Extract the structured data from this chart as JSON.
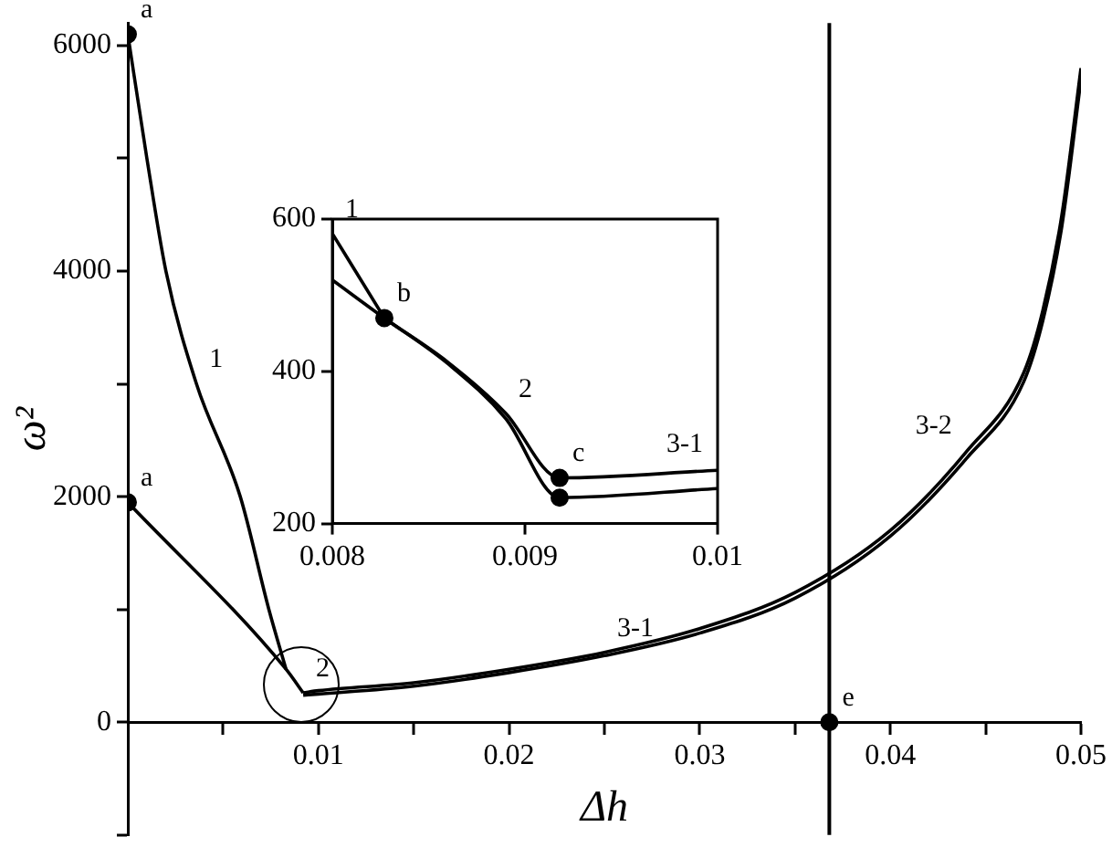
{
  "chart_data": [
    {
      "type": "line",
      "xlabel": "Δh",
      "ylabel": "ω²",
      "xlim": [
        0,
        0.05
      ],
      "ylim": [
        -1000,
        6200
      ],
      "xticks": [
        {
          "value": 0.005,
          "label": null
        },
        0.01,
        {
          "value": 0.015,
          "label": null
        },
        0.02,
        {
          "value": 0.025,
          "label": null
        },
        0.03,
        {
          "value": 0.035,
          "label": null
        },
        0.04,
        {
          "value": 0.045,
          "label": null
        },
        0.05
      ],
      "yticks": [
        {
          "value": -1000,
          "label": null
        },
        0,
        {
          "value": 1000,
          "label": null
        },
        2000,
        {
          "value": 3000,
          "label": null
        },
        4000,
        {
          "value": 5000,
          "label": null
        },
        6000
      ],
      "grid": false,
      "legend": false,
      "line_style": "solid",
      "series": [
        {
          "color": "#000000",
          "x": [
            0,
            0.001,
            0.002,
            0.0036,
            0.0059,
            0.0074,
            0.0083
          ],
          "values": [
            6100,
            5000,
            4000,
            3000,
            2000,
            1000,
            470
          ]
        },
        {
          "color": "#000000",
          "x": [
            0,
            0.0083,
            0.0092
          ],
          "values": [
            1950,
            470,
            260
          ]
        },
        {
          "color": "#000000",
          "x": [
            0.0092,
            0.01,
            0.015,
            0.02,
            0.025,
            0.03,
            0.035,
            0.04,
            0.044,
            0.047,
            0.048,
            0.049,
            0.05
          ],
          "values": [
            260,
            280,
            350,
            470,
            620,
            830,
            1150,
            1700,
            2400,
            3100,
            3650,
            4500,
            5800
          ]
        },
        {
          "color": "#000000",
          "x": [
            0.0092,
            0.01,
            0.015,
            0.02,
            0.025,
            0.03,
            0.035,
            0.04,
            0.044,
            0.047,
            0.048,
            0.049,
            0.05
          ],
          "values": [
            240,
            250,
            320,
            440,
            590,
            790,
            1100,
            1650,
            2340,
            3020,
            3560,
            4400,
            5700
          ]
        },
        {
          "type": "scatter",
          "marker": "circle",
          "color": "#000000",
          "x": [
            0,
            0,
            0.0368
          ],
          "values": [
            6100,
            1950,
            0
          ]
        }
      ],
      "ref_lines": [
        {
          "axis": "x",
          "value": 0.0368,
          "color": "#000000"
        }
      ],
      "annotations": [
        {
          "text": "a",
          "x": 0,
          "y": 6100
        },
        {
          "text": "a",
          "x": 0,
          "y": 1950
        },
        {
          "text": "1",
          "x": 0.0036,
          "y": 3000
        },
        {
          "text": "2",
          "x": 0.0092,
          "y": 260
        },
        {
          "text": "3-1",
          "x": 0.025,
          "y": 620
        },
        {
          "text": "3-2",
          "x": 0.044,
          "y": 2400
        },
        {
          "text": "e",
          "x": 0.0368,
          "y": 0
        }
      ]
    },
    {
      "type": "line",
      "xlim": [
        0.008,
        0.01
      ],
      "ylim": [
        200,
        600
      ],
      "xticks": [
        0.008,
        0.009,
        0.01
      ],
      "yticks": [
        200,
        400,
        600
      ],
      "grid": false,
      "legend": false,
      "line_style": "solid",
      "series": [
        {
          "color": "#000000",
          "x": [
            0.008,
            0.00827
          ],
          "values": [
            581,
            470
          ]
        },
        {
          "color": "#000000",
          "x": [
            0.008,
            0.00827,
            0.0086,
            0.0089,
            0.00918,
            0.01
          ],
          "values": [
            520,
            470,
            412,
            345,
            260,
            270
          ]
        },
        {
          "color": "#000000",
          "x": [
            0.00827,
            0.0086,
            0.0089,
            0.00918,
            0.01
          ],
          "values": [
            470,
            410,
            338,
            234,
            246
          ]
        },
        {
          "type": "scatter",
          "marker": "circle",
          "color": "#000000",
          "x": [
            0.00827,
            0.00918,
            0.00918
          ],
          "values": [
            470,
            260,
            234
          ]
        }
      ],
      "annotations": [
        {
          "text": "1",
          "x": 0.008,
          "y": 581
        },
        {
          "text": "b",
          "x": 0.00827,
          "y": 470
        },
        {
          "text": "2",
          "x": 0.0089,
          "y": 345
        },
        {
          "text": "c",
          "x": 0.00918,
          "y": 260
        },
        {
          "text": "3-1",
          "x": 0.01,
          "y": 270
        }
      ]
    }
  ]
}
